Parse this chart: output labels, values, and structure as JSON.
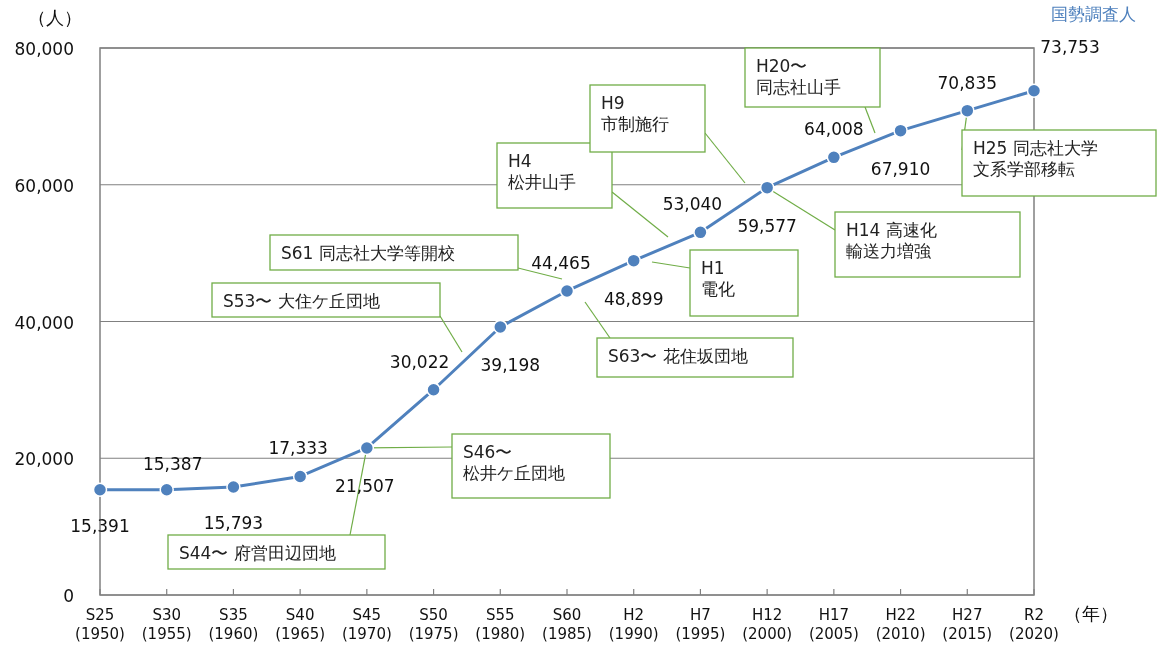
{
  "chart_data": {
    "type": "line",
    "xlabel": "（年）",
    "ylabel": "（人）",
    "categories": [
      "S25\n(1950)",
      "S30\n(1955)",
      "S35\n(1960)",
      "S40\n(1965)",
      "S45\n(1970)",
      "S50\n(1975)",
      "S55\n(1980)",
      "S60\n(1985)",
      "H2\n(1990)",
      "H7\n(1995)",
      "H12\n(2000)",
      "H17\n(2005)",
      "H22\n(2010)",
      "H27\n(2015)",
      "R2\n(2020)"
    ],
    "series": [
      {
        "name": "国勢調査人",
        "color": "#4f81bd",
        "values": [
          15391,
          15387,
          15793,
          17333,
          21507,
          30022,
          39198,
          44465,
          48899,
          53040,
          59577,
          64008,
          67910,
          70835,
          73753
        ],
        "value_labels": [
          "15,391",
          "15,387",
          "15,793",
          "17,333",
          "21,507",
          "30,022",
          "39,198",
          "44,465",
          "48,899",
          "53,040",
          "59,577",
          "64,008",
          "67,910",
          "70,835",
          "73,753"
        ]
      }
    ],
    "ylim": [
      0,
      80000
    ],
    "yticks": [
      0,
      {
        "value": 20000,
        "label": "20,000"
      },
      {
        "value": 40000,
        "label": "40,000"
      },
      {
        "value": 60000,
        "label": "60,000"
      },
      {
        "value": 80000,
        "label": "80,000"
      }
    ],
    "grid": "y",
    "legend": "top right",
    "marker": "circle",
    "line_style": "solid",
    "annotations": [
      {
        "text": "S44〜 府営田辺団地",
        "x": "S45\n(1970)",
        "y": 21507
      },
      {
        "text": "S46〜松井ケ丘団地",
        "x": "S45\n(1970)",
        "y": 21507
      },
      "S53〜 大住ケ丘団地",
      "S61 同志社大学等開校",
      "S63〜 花住坂団地",
      "H1電化",
      "H4松井山手",
      "H9市制施行",
      {
        "text": "H14 高速化輸送力増強",
        "x": "H12\n(2000)",
        "y": 59577
      },
      "H20〜同志社山手",
      {
        "text": "H25 同志社大学文系学部移転",
        "x": "H27\n(2015)",
        "y": 70835
      }
    ]
  }
}
